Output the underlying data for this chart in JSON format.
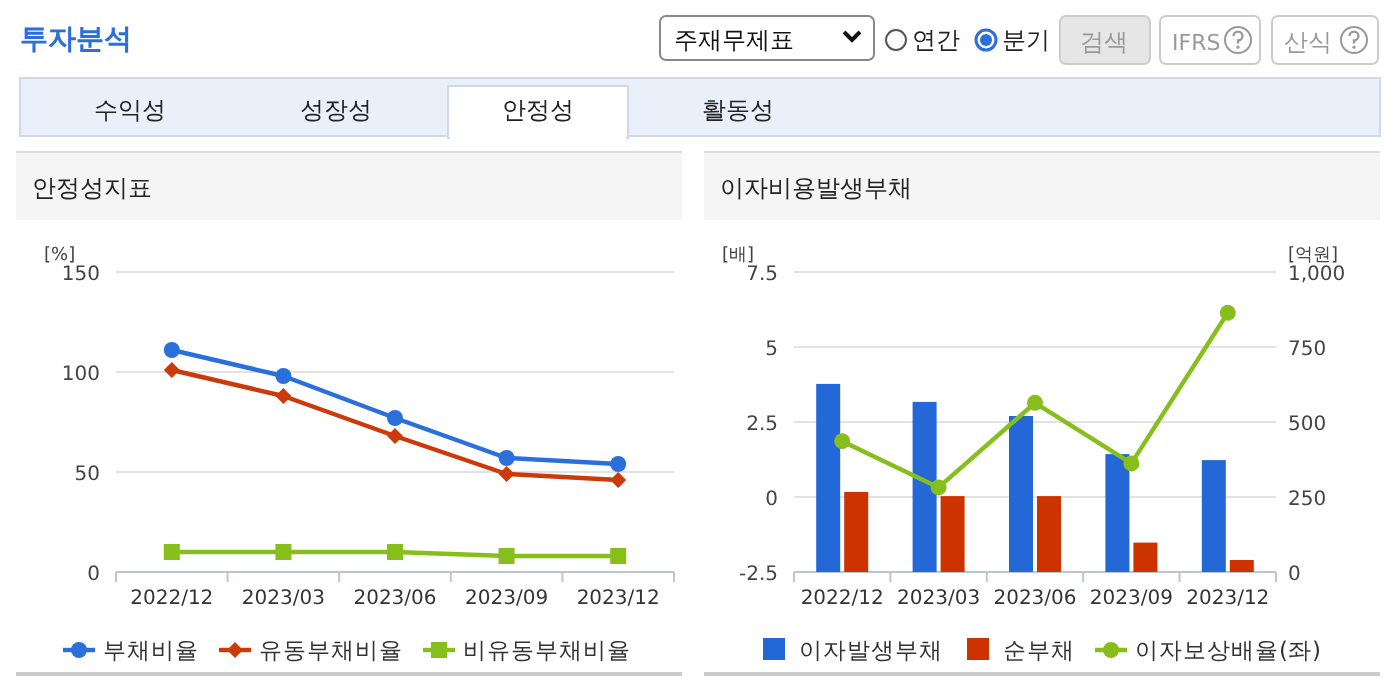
{
  "chart_data": [
    {
      "type": "other",
      "annotations": [
        "투자분석",
        "주재무제표",
        "연간",
        "분기",
        "검색",
        "IFRS",
        "산식",
        "수익성",
        "성장성",
        "안정성",
        "활동성"
      ]
    },
    {
      "type": "line",
      "title": "안정성지표",
      "ylabel": "[%]",
      "categories": [
        "2022/12",
        "2023/03",
        "2023/06",
        "2023/09",
        "2023/12"
      ],
      "ylim": [
        0,
        150
      ],
      "yticks": [
        0,
        50,
        100,
        150
      ],
      "grid": "y",
      "legend": "bottom",
      "series": [
        {
          "name": "부채비율",
          "color": "#2a6fdb",
          "marker": "circle",
          "values": [
            111,
            98,
            77,
            57,
            54
          ]
        },
        {
          "name": "유동부채비율",
          "color": "#cc3a0a",
          "marker": "diamond",
          "values": [
            101,
            88,
            68,
            49,
            46
          ]
        },
        {
          "name": "비유동부채비율",
          "color": "#86bf1c",
          "marker": "square",
          "values": [
            10,
            10,
            10,
            8,
            8
          ]
        }
      ]
    },
    {
      "type": "bar",
      "title": "이자비용발생부채",
      "ylabel": "[배]",
      "y2label": "[억원]",
      "categories": [
        "2022/12",
        "2023/03",
        "2023/06",
        "2023/09",
        "2023/12"
      ],
      "ylim": [
        -2.5,
        7.5
      ],
      "yticks": [
        -2.5,
        0,
        2.5,
        5,
        7.5
      ],
      "y2lim": [
        0,
        1000
      ],
      "y2ticks": [
        0,
        250,
        500,
        750,
        {
          "value": 1000,
          "label": "1,000"
        }
      ],
      "grid": "y",
      "legend": "bottom",
      "series": [
        {
          "name": "이자발생부채",
          "color": "#2468d8",
          "axis": "y2",
          "values": [
            627,
            567,
            520,
            393,
            373
          ]
        },
        {
          "name": "순부채",
          "color": "#cc3300",
          "axis": "y2",
          "values": [
            267,
            253,
            253,
            98,
            40
          ]
        },
        {
          "name": "이자보상배율(좌)",
          "type": "line",
          "color": "#86bf1c",
          "marker": "circle",
          "values": [
            1.86,
            0.32,
            3.14,
            1.12,
            6.14
          ]
        }
      ]
    }
  ]
}
